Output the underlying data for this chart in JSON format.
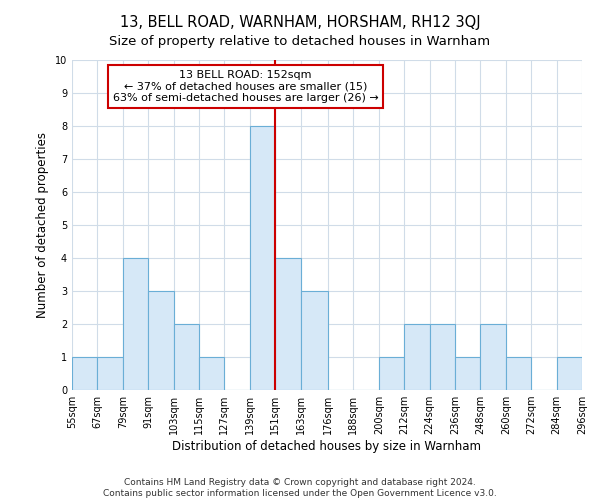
{
  "title": "13, BELL ROAD, WARNHAM, HORSHAM, RH12 3QJ",
  "subtitle": "Size of property relative to detached houses in Warnham",
  "xlabel": "Distribution of detached houses by size in Warnham",
  "ylabel": "Number of detached properties",
  "bin_edges": [
    55,
    67,
    79,
    91,
    103,
    115,
    127,
    139,
    151,
    163,
    176,
    188,
    200,
    212,
    224,
    236,
    248,
    260,
    272,
    284,
    296
  ],
  "bin_labels": [
    "55sqm",
    "67sqm",
    "79sqm",
    "91sqm",
    "103sqm",
    "115sqm",
    "127sqm",
    "139sqm",
    "151sqm",
    "163sqm",
    "176sqm",
    "188sqm",
    "200sqm",
    "212sqm",
    "224sqm",
    "236sqm",
    "248sqm",
    "260sqm",
    "272sqm",
    "284sqm",
    "296sqm"
  ],
  "counts": [
    1,
    1,
    4,
    3,
    2,
    1,
    0,
    8,
    4,
    3,
    0,
    0,
    1,
    2,
    2,
    1,
    2,
    1,
    0,
    1
  ],
  "bar_color": "#d6e8f7",
  "bar_edge_color": "#6aaed6",
  "property_line_x": 151,
  "property_line_color": "#cc0000",
  "annotation_box_edge_color": "#cc0000",
  "annotation_title": "13 BELL ROAD: 152sqm",
  "annotation_line1": "← 37% of detached houses are smaller (15)",
  "annotation_line2": "63% of semi-detached houses are larger (26) →",
  "ylim": [
    0,
    10
  ],
  "yticks": [
    0,
    1,
    2,
    3,
    4,
    5,
    6,
    7,
    8,
    9,
    10
  ],
  "footer_line1": "Contains HM Land Registry data © Crown copyright and database right 2024.",
  "footer_line2": "Contains public sector information licensed under the Open Government Licence v3.0.",
  "bg_color": "#ffffff",
  "plot_bg_color": "#ffffff",
  "grid_color": "#d0dce8",
  "title_fontsize": 10.5,
  "subtitle_fontsize": 9.5,
  "axis_label_fontsize": 8.5,
  "tick_fontsize": 7,
  "footer_fontsize": 6.5,
  "annotation_fontsize": 8
}
